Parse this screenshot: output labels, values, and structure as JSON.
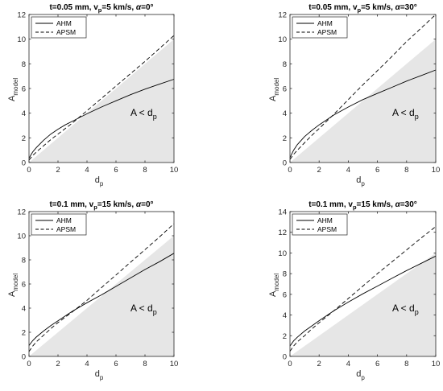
{
  "chart_data": [
    {
      "type": "line",
      "title": "t=0.05 mm, v_p=5 km/s, α=0°",
      "title_parts": {
        "a": "t=0.05 mm, v",
        "sub": "p",
        "b": "=5 km/s, ",
        "alpha": "α",
        "c": "=0°"
      },
      "xlabel": "d",
      "xlabel_sub": "p",
      "ylabel": "A",
      "ylabel_sub": "model",
      "xlim": [
        0,
        10
      ],
      "ylim": [
        0,
        12
      ],
      "xticks": [
        "0",
        "2",
        "4",
        "6",
        "8",
        "10"
      ],
      "yticks": [
        "0",
        "2",
        "4",
        "6",
        "8",
        "10",
        "12"
      ],
      "annotation": "A < d",
      "annotation_sub": "p",
      "shaded_region": "A < d_p",
      "legend_position": "top-left",
      "grid": false,
      "series": [
        {
          "name": "AHM",
          "style": "solid",
          "x": [
            0,
            0.25,
            0.5,
            1,
            1.5,
            2,
            2.5,
            3,
            4,
            5,
            6,
            7,
            8,
            9,
            10
          ],
          "y": [
            0.35,
            0.85,
            1.2,
            1.8,
            2.3,
            2.7,
            3.05,
            3.35,
            3.95,
            4.5,
            5.0,
            5.5,
            5.95,
            6.35,
            6.75
          ]
        },
        {
          "name": "APSM",
          "style": "dashed",
          "x": [
            0,
            0.25,
            0.5,
            1,
            1.5,
            2,
            3,
            4,
            5,
            6,
            7,
            8,
            9,
            10
          ],
          "y": [
            0.2,
            0.55,
            0.85,
            1.35,
            1.85,
            2.3,
            3.2,
            4.2,
            5.2,
            6.2,
            7.2,
            8.2,
            9.25,
            10.3
          ]
        }
      ]
    },
    {
      "type": "line",
      "title": "t=0.05 mm, v_p=5 km/s, α=30°",
      "title_parts": {
        "a": "t=0.05 mm, v",
        "sub": "p",
        "b": "=5 km/s, ",
        "alpha": "α",
        "c": "=30°"
      },
      "xlabel": "d",
      "xlabel_sub": "p",
      "ylabel": "A",
      "ylabel_sub": "model",
      "xlim": [
        0,
        10
      ],
      "ylim": [
        0,
        12
      ],
      "xticks": [
        "0",
        "2",
        "4",
        "6",
        "8",
        "10"
      ],
      "yticks": [
        "0",
        "2",
        "4",
        "6",
        "8",
        "10",
        "12"
      ],
      "annotation": "A < d",
      "annotation_sub": "p",
      "shaded_region": "A < d_p",
      "legend_position": "top-left",
      "grid": false,
      "series": [
        {
          "name": "AHM",
          "style": "solid",
          "x": [
            0,
            0.25,
            0.5,
            1,
            1.5,
            2,
            2.5,
            3,
            4,
            5,
            6,
            7,
            8,
            9,
            10
          ],
          "y": [
            0.4,
            1.0,
            1.45,
            2.1,
            2.6,
            3.05,
            3.45,
            3.85,
            4.5,
            5.1,
            5.6,
            6.1,
            6.6,
            7.05,
            7.5
          ]
        },
        {
          "name": "APSM",
          "style": "dashed",
          "x": [
            0,
            0.25,
            0.5,
            1,
            1.5,
            2,
            3,
            4,
            5,
            6,
            7,
            8,
            9,
            10
          ],
          "y": [
            0.25,
            0.65,
            1.0,
            1.6,
            2.2,
            2.75,
            3.9,
            5.1,
            6.3,
            7.45,
            8.6,
            9.8,
            10.9,
            12.0
          ]
        }
      ]
    },
    {
      "type": "line",
      "title": "t=0.1 mm, v_p=15 km/s, α=0°",
      "title_parts": {
        "a": "t=0.1 mm, v",
        "sub": "p",
        "b": "=15 km/s, ",
        "alpha": "α",
        "c": "=0°"
      },
      "xlabel": "d",
      "xlabel_sub": "p",
      "ylabel": "A",
      "ylabel_sub": "model",
      "xlim": [
        0,
        10
      ],
      "ylim": [
        0,
        12
      ],
      "xticks": [
        "0",
        "2",
        "4",
        "6",
        "8",
        "10"
      ],
      "yticks": [
        "0",
        "2",
        "4",
        "6",
        "8",
        "10",
        "12"
      ],
      "annotation": "A < d",
      "annotation_sub": "p",
      "shaded_region": "A < d_p",
      "legend_position": "top-left",
      "grid": false,
      "series": [
        {
          "name": "AHM",
          "style": "solid",
          "x": [
            0,
            0.25,
            0.5,
            1,
            1.5,
            2,
            3,
            4,
            5,
            6,
            7,
            8,
            9,
            10
          ],
          "y": [
            0.9,
            1.3,
            1.6,
            2.1,
            2.55,
            2.95,
            3.75,
            4.45,
            5.1,
            5.8,
            6.5,
            7.2,
            7.85,
            8.55
          ]
        },
        {
          "name": "APSM",
          "style": "dashed",
          "x": [
            0,
            0.25,
            0.5,
            1,
            1.5,
            2,
            3,
            4,
            5,
            6,
            7,
            8,
            9,
            10
          ],
          "y": [
            0.4,
            0.85,
            1.2,
            1.75,
            2.3,
            2.8,
            3.7,
            4.65,
            5.7,
            6.75,
            7.8,
            8.85,
            9.9,
            11.0
          ]
        }
      ]
    },
    {
      "type": "line",
      "title": "t=0.1 mm, v_p=15 km/s, α=30°",
      "title_parts": {
        "a": "t=0.1 mm, v",
        "sub": "p",
        "b": "=15 km/s, ",
        "alpha": "α",
        "c": "=30°"
      },
      "xlabel": "d",
      "xlabel_sub": "p",
      "ylabel": "A",
      "ylabel_sub": "model",
      "xlim": [
        0,
        10
      ],
      "ylim": [
        0,
        14
      ],
      "xticks": [
        "0",
        "2",
        "4",
        "6",
        "8",
        "10"
      ],
      "yticks": [
        "0",
        "2",
        "4",
        "6",
        "8",
        "10",
        "12",
        "14"
      ],
      "annotation": "A < d",
      "annotation_sub": "p",
      "shaded_region": "A < d_p",
      "legend_position": "top-left",
      "grid": false,
      "series": [
        {
          "name": "AHM",
          "style": "solid",
          "x": [
            0,
            0.25,
            0.5,
            1,
            1.5,
            2,
            3,
            4,
            5,
            6,
            7,
            8,
            9,
            10
          ],
          "y": [
            1.0,
            1.5,
            1.85,
            2.45,
            2.95,
            3.45,
            4.4,
            5.25,
            6.05,
            6.8,
            7.55,
            8.3,
            9.0,
            9.7
          ]
        },
        {
          "name": "APSM",
          "style": "dashed",
          "x": [
            0,
            0.25,
            0.5,
            1,
            1.5,
            2,
            3,
            4,
            5,
            6,
            7,
            8,
            9,
            10
          ],
          "y": [
            0.5,
            1.0,
            1.4,
            2.0,
            2.65,
            3.25,
            4.4,
            5.6,
            6.8,
            8.0,
            9.15,
            10.3,
            11.45,
            12.55
          ]
        }
      ]
    }
  ]
}
